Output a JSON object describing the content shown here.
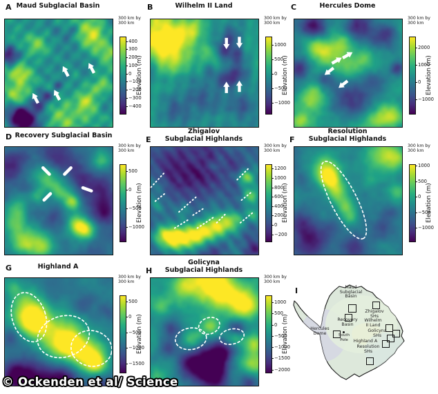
{
  "figure": {
    "credit": "© Ockenden et al/ Science",
    "colormap_colors": {
      "high": "#fde725",
      "mid": "#21918c",
      "low": "#440154",
      "annotation": "#ffffff"
    }
  },
  "panels": [
    {
      "letter": "A",
      "title_lines": [
        "Maud Subglacial Basin"
      ],
      "scale_note": [
        "300 km by",
        "300 km"
      ],
      "colorbar": {
        "label": "Elevation (m)",
        "vmin": -500,
        "vmax": 460,
        "ticks": [
          "400",
          "300",
          "200",
          "100",
          "0",
          "−100",
          "−200",
          "−300",
          "−400"
        ]
      },
      "annotation": "four white arrows"
    },
    {
      "letter": "B",
      "title_lines": [
        "Wilhelm II Land"
      ],
      "scale_note": [
        "300 km by",
        "300 km"
      ],
      "colorbar": {
        "label": "Elevation (m)",
        "vmin": -1400,
        "vmax": 1300,
        "ticks": [
          "1000",
          "500",
          "0",
          "−500",
          "−1000"
        ]
      },
      "annotation": "four white arrows bracketing ring structure"
    },
    {
      "letter": "C",
      "title_lines": [
        "Hercules Dome"
      ],
      "scale_note": [
        "300 km by",
        "300 km"
      ],
      "colorbar": {
        "label": "Elevation (m)",
        "vmin": -1850,
        "vmax": 2650,
        "ticks": [
          "2000",
          "1000",
          "0",
          "−1000"
        ]
      },
      "annotation": "four white arrows"
    },
    {
      "letter": "D",
      "title_lines": [
        "Recovery Subglacial Basin"
      ],
      "scale_note": [
        "300 km by",
        "300 km"
      ],
      "colorbar": {
        "label": "Elevation (m)",
        "vmin": -1400,
        "vmax": 700,
        "ticks": [
          "500",
          "0",
          "−500",
          "−1000"
        ]
      },
      "annotation": "four white strokes"
    },
    {
      "letter": "E",
      "title_lines": [
        "Zhigalov",
        "Subglacial Highlands"
      ],
      "scale_note": [
        "300 km by",
        "300 km"
      ],
      "colorbar": {
        "label": "Elevation (m)",
        "vmin": -360,
        "vmax": 1300,
        "ticks": [
          "1200",
          "1000",
          "800",
          "600",
          "400",
          "200",
          "0",
          "−200"
        ]
      },
      "annotation": "white dashed lineations"
    },
    {
      "letter": "F",
      "title_lines": [
        "Resolution",
        "Subglacial Highlands"
      ],
      "scale_note": [
        "300 km by",
        "300 km"
      ],
      "colorbar": {
        "label": "Elevation (m)",
        "vmin": -1450,
        "vmax": 1060,
        "ticks": [
          "1000",
          "500",
          "0",
          "−500",
          "−1000"
        ]
      },
      "annotation": "white dashed outline of elongated highland"
    },
    {
      "letter": "G",
      "title_lines": [
        "Highland A"
      ],
      "scale_note": [
        "300 km by",
        "300 km"
      ],
      "colorbar": {
        "label": "Elevation (m)",
        "vmin": -1800,
        "vmax": 700,
        "ticks": [
          "500",
          "0",
          "−500",
          "−1000",
          "−1500"
        ]
      },
      "annotation": "three white dashed outlines"
    },
    {
      "letter": "H",
      "title_lines": [
        "Golicyna",
        "Subglacial Highlands"
      ],
      "scale_note": [
        "300 km by",
        "300 km"
      ],
      "colorbar": {
        "label": "Elevation (m)",
        "vmin": -2150,
        "vmax": 1330,
        "ticks": [
          "1000",
          "500",
          "0",
          "−500",
          "−1000",
          "−1500",
          "−2000"
        ]
      },
      "annotation": "three white dashed outlines"
    }
  ],
  "locator_map": {
    "letter": "I",
    "labels": [
      {
        "lines": [
          "Maud",
          "Subglacial",
          "Basin"
        ]
      },
      {
        "lines": [
          "Zhigalov",
          "SHs"
        ]
      },
      {
        "lines": [
          "Recovery",
          "Basin"
        ]
      },
      {
        "lines": [
          "Wilhelm",
          "II Land"
        ]
      },
      {
        "lines": [
          "Golicyna",
          "SHs"
        ]
      },
      {
        "lines": [
          "Hercules",
          "Dome"
        ]
      },
      {
        "lines": [
          "South",
          "Pole"
        ]
      },
      {
        "lines": [
          "Highland A"
        ]
      },
      {
        "lines": [
          "Resolution",
          "SHs"
        ]
      }
    ]
  },
  "chart_data": [
    {
      "type": "heatmap",
      "panel": "A",
      "title": "Maud Subglacial Basin",
      "region": "300 km by 300 km",
      "colormap": "viridis",
      "colorbar_label": "Elevation (m)",
      "colorbar_ticks": [
        400,
        300,
        200,
        100,
        0,
        -100,
        -200,
        -300,
        -400
      ],
      "colorbar_range": [
        -500,
        460
      ],
      "annotations": "4 white arrows marking linear valley features"
    },
    {
      "type": "heatmap",
      "panel": "B",
      "title": "Wilhelm II Land",
      "region": "300 km by 300 km",
      "colormap": "viridis",
      "colorbar_label": "Elevation (m)",
      "colorbar_ticks": [
        1000,
        500,
        0,
        -500,
        -1000
      ],
      "colorbar_range": [
        -1400,
        1300
      ],
      "annotations": "2 down-arrows and 2 up-arrows bracketing circular structure"
    },
    {
      "type": "heatmap",
      "panel": "C",
      "title": "Hercules Dome",
      "region": "300 km by 300 km",
      "colormap": "viridis",
      "colorbar_label": "Elevation (m)",
      "colorbar_ticks": [
        2000,
        1000,
        0,
        -1000
      ],
      "colorbar_range": [
        -1850,
        2650
      ],
      "annotations": "4 white arrows on central ridge"
    },
    {
      "type": "heatmap",
      "panel": "D",
      "title": "Recovery Subglacial Basin",
      "region": "300 km by 300 km",
      "colormap": "viridis",
      "colorbar_label": "Elevation (m)",
      "colorbar_ticks": [
        500,
        0,
        -500,
        -1000
      ],
      "colorbar_range": [
        -1400,
        700
      ],
      "annotations": "4 white strokes around central block"
    },
    {
      "type": "heatmap",
      "panel": "E",
      "title": "Zhigalov Subglacial Highlands",
      "region": "300 km by 300 km",
      "colormap": "viridis",
      "colorbar_label": "Elevation (m)",
      "colorbar_ticks": [
        1200,
        1000,
        800,
        600,
        400,
        200,
        0,
        -200
      ],
      "colorbar_range": [
        -360,
        1300
      ],
      "annotations": "about 10 short white dashed NE-trending lineations"
    },
    {
      "type": "heatmap",
      "panel": "F",
      "title": "Resolution Subglacial Highlands",
      "region": "300 km by 300 km",
      "colormap": "viridis",
      "colorbar_label": "Elevation (m)",
      "colorbar_ticks": [
        1000,
        500,
        0,
        -500,
        -1000
      ],
      "colorbar_range": [
        -1450,
        1060
      ],
      "annotations": "white dashed teardrop outline of NW-SE elongated highland"
    },
    {
      "type": "heatmap",
      "panel": "G",
      "title": "Highland A",
      "region": "300 km by 300 km",
      "colormap": "viridis",
      "colorbar_label": "Elevation (m)",
      "colorbar_ticks": [
        500,
        0,
        -500,
        -1000,
        -1500
      ],
      "colorbar_range": [
        -1800,
        700
      ],
      "annotations": "3 white dashed outlines around high blocks"
    },
    {
      "type": "heatmap",
      "panel": "H",
      "title": "Golicyna Subglacial Highlands",
      "region": "300 km by 300 km",
      "colormap": "viridis",
      "colorbar_label": "Elevation (m)",
      "colorbar_ticks": [
        1000,
        500,
        0,
        -500,
        -1000,
        -1500,
        -2000
      ],
      "colorbar_range": [
        -2150,
        1330
      ],
      "annotations": "3 white dashed outlines around high blocks"
    },
    {
      "type": "map",
      "panel": "I",
      "title": "Antarctica locator map",
      "locations": [
        "Maud Subglacial Basin",
        "Zhigalov SHs",
        "Recovery Basin",
        "Wilhelm II Land",
        "Golicyna SHs",
        "Hercules Dome",
        "South Pole",
        "Highland A",
        "Resolution SHs"
      ],
      "markers": "black outline squares at each study site, dot at South Pole"
    }
  ]
}
